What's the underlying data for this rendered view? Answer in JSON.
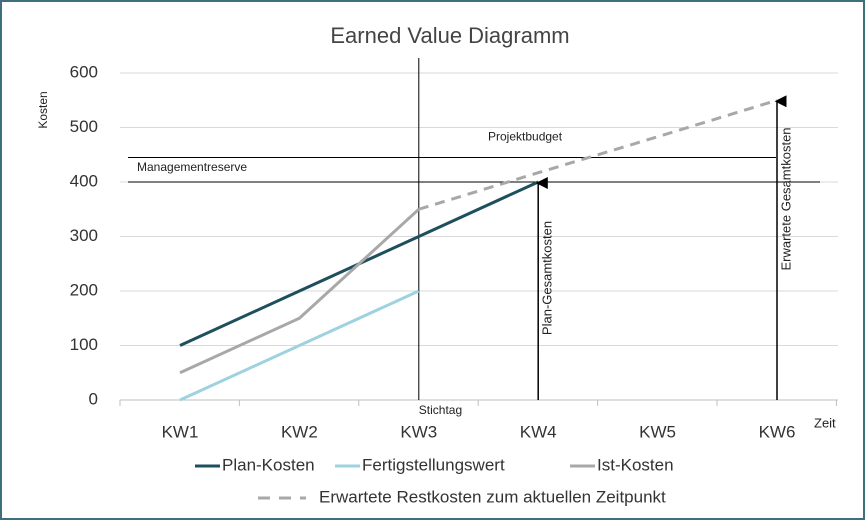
{
  "chart_data": {
    "type": "line",
    "title": "Earned Value Diagramm",
    "y_label": "Kosten",
    "x_label": "Zeit",
    "categories": [
      "KW1",
      "KW2",
      "KW3",
      "KW4",
      "KW5",
      "KW6"
    ],
    "series": [
      {
        "name": "Plan-Kosten",
        "color": "#1e4f5c",
        "values": [
          100,
          200,
          300,
          400,
          null,
          null
        ]
      },
      {
        "name": "Fertigstellungswert",
        "color": "#9fd2e0",
        "values": [
          0,
          100,
          200,
          null,
          null,
          null
        ]
      },
      {
        "name": "Ist-Kosten",
        "color": "#a8a8a8",
        "values": [
          50,
          150,
          350,
          null,
          null,
          null
        ]
      },
      {
        "name": "Erwartete Restkosten zum aktuellen Zeitpunkt",
        "color": "#a8a8a8",
        "dashed": true,
        "values": [
          null,
          null,
          350,
          417,
          483,
          550
        ]
      }
    ],
    "ylim": [
      0,
      600
    ],
    "yticks": [
      0,
      100,
      200,
      300,
      400,
      500,
      600
    ],
    "grid": true,
    "reference_lines": [
      {
        "label": "Projektbudget",
        "value": 445
      },
      {
        "label": "Managementreserve",
        "value": 400
      }
    ],
    "vertical_markers": [
      {
        "label": "Stichtag",
        "x": "KW3"
      }
    ],
    "arrows": [
      {
        "label": "Plan-Gesamtkosten",
        "x": "KW4",
        "value": 400
      },
      {
        "label": "Erwartete Gesamtkosten",
        "x": "KW6",
        "value": 550
      }
    ]
  }
}
